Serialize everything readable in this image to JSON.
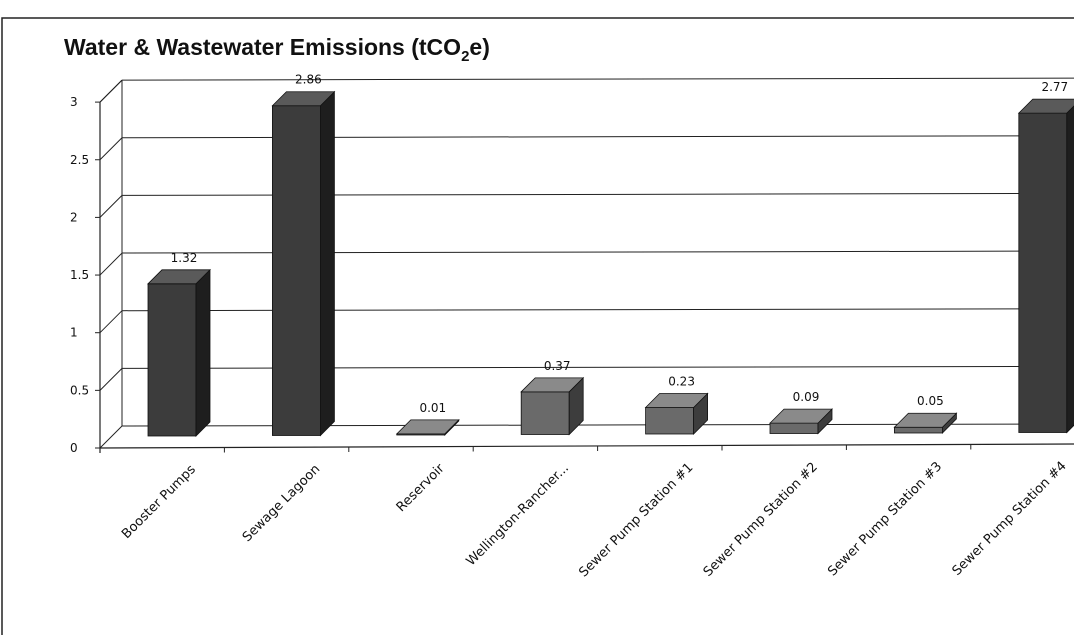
{
  "chart_data": {
    "type": "bar",
    "title": "Water & Wastewater Emissions (tCO",
    "title_subscript": "2",
    "title_suffix": "e)",
    "categories": [
      "Booster Pumps",
      "Sewage Lagoon",
      "Reservoir",
      "Wellington-Rancher...",
      "Sewer Pump Station #1",
      "Sewer Pump Station #2",
      "Sewer Pump Station #3",
      "Sewer Pump Station #4"
    ],
    "values": [
      1.32,
      2.86,
      0.01,
      0.37,
      0.23,
      0.09,
      0.05,
      2.77
    ],
    "value_labels": [
      "1.32",
      "2.86",
      "0.01",
      "0.37",
      "0.23",
      "0.09",
      "0.05",
      "2.77"
    ],
    "y_ticks": [
      "0",
      "0.5",
      "1",
      "1.5",
      "2",
      "2.5",
      "3"
    ],
    "ylim": [
      0,
      3
    ],
    "grid": true,
    "legend": "none",
    "colors": {
      "tall_bar": "#3c3c3c",
      "short_bar": "#6a6a6a"
    }
  }
}
